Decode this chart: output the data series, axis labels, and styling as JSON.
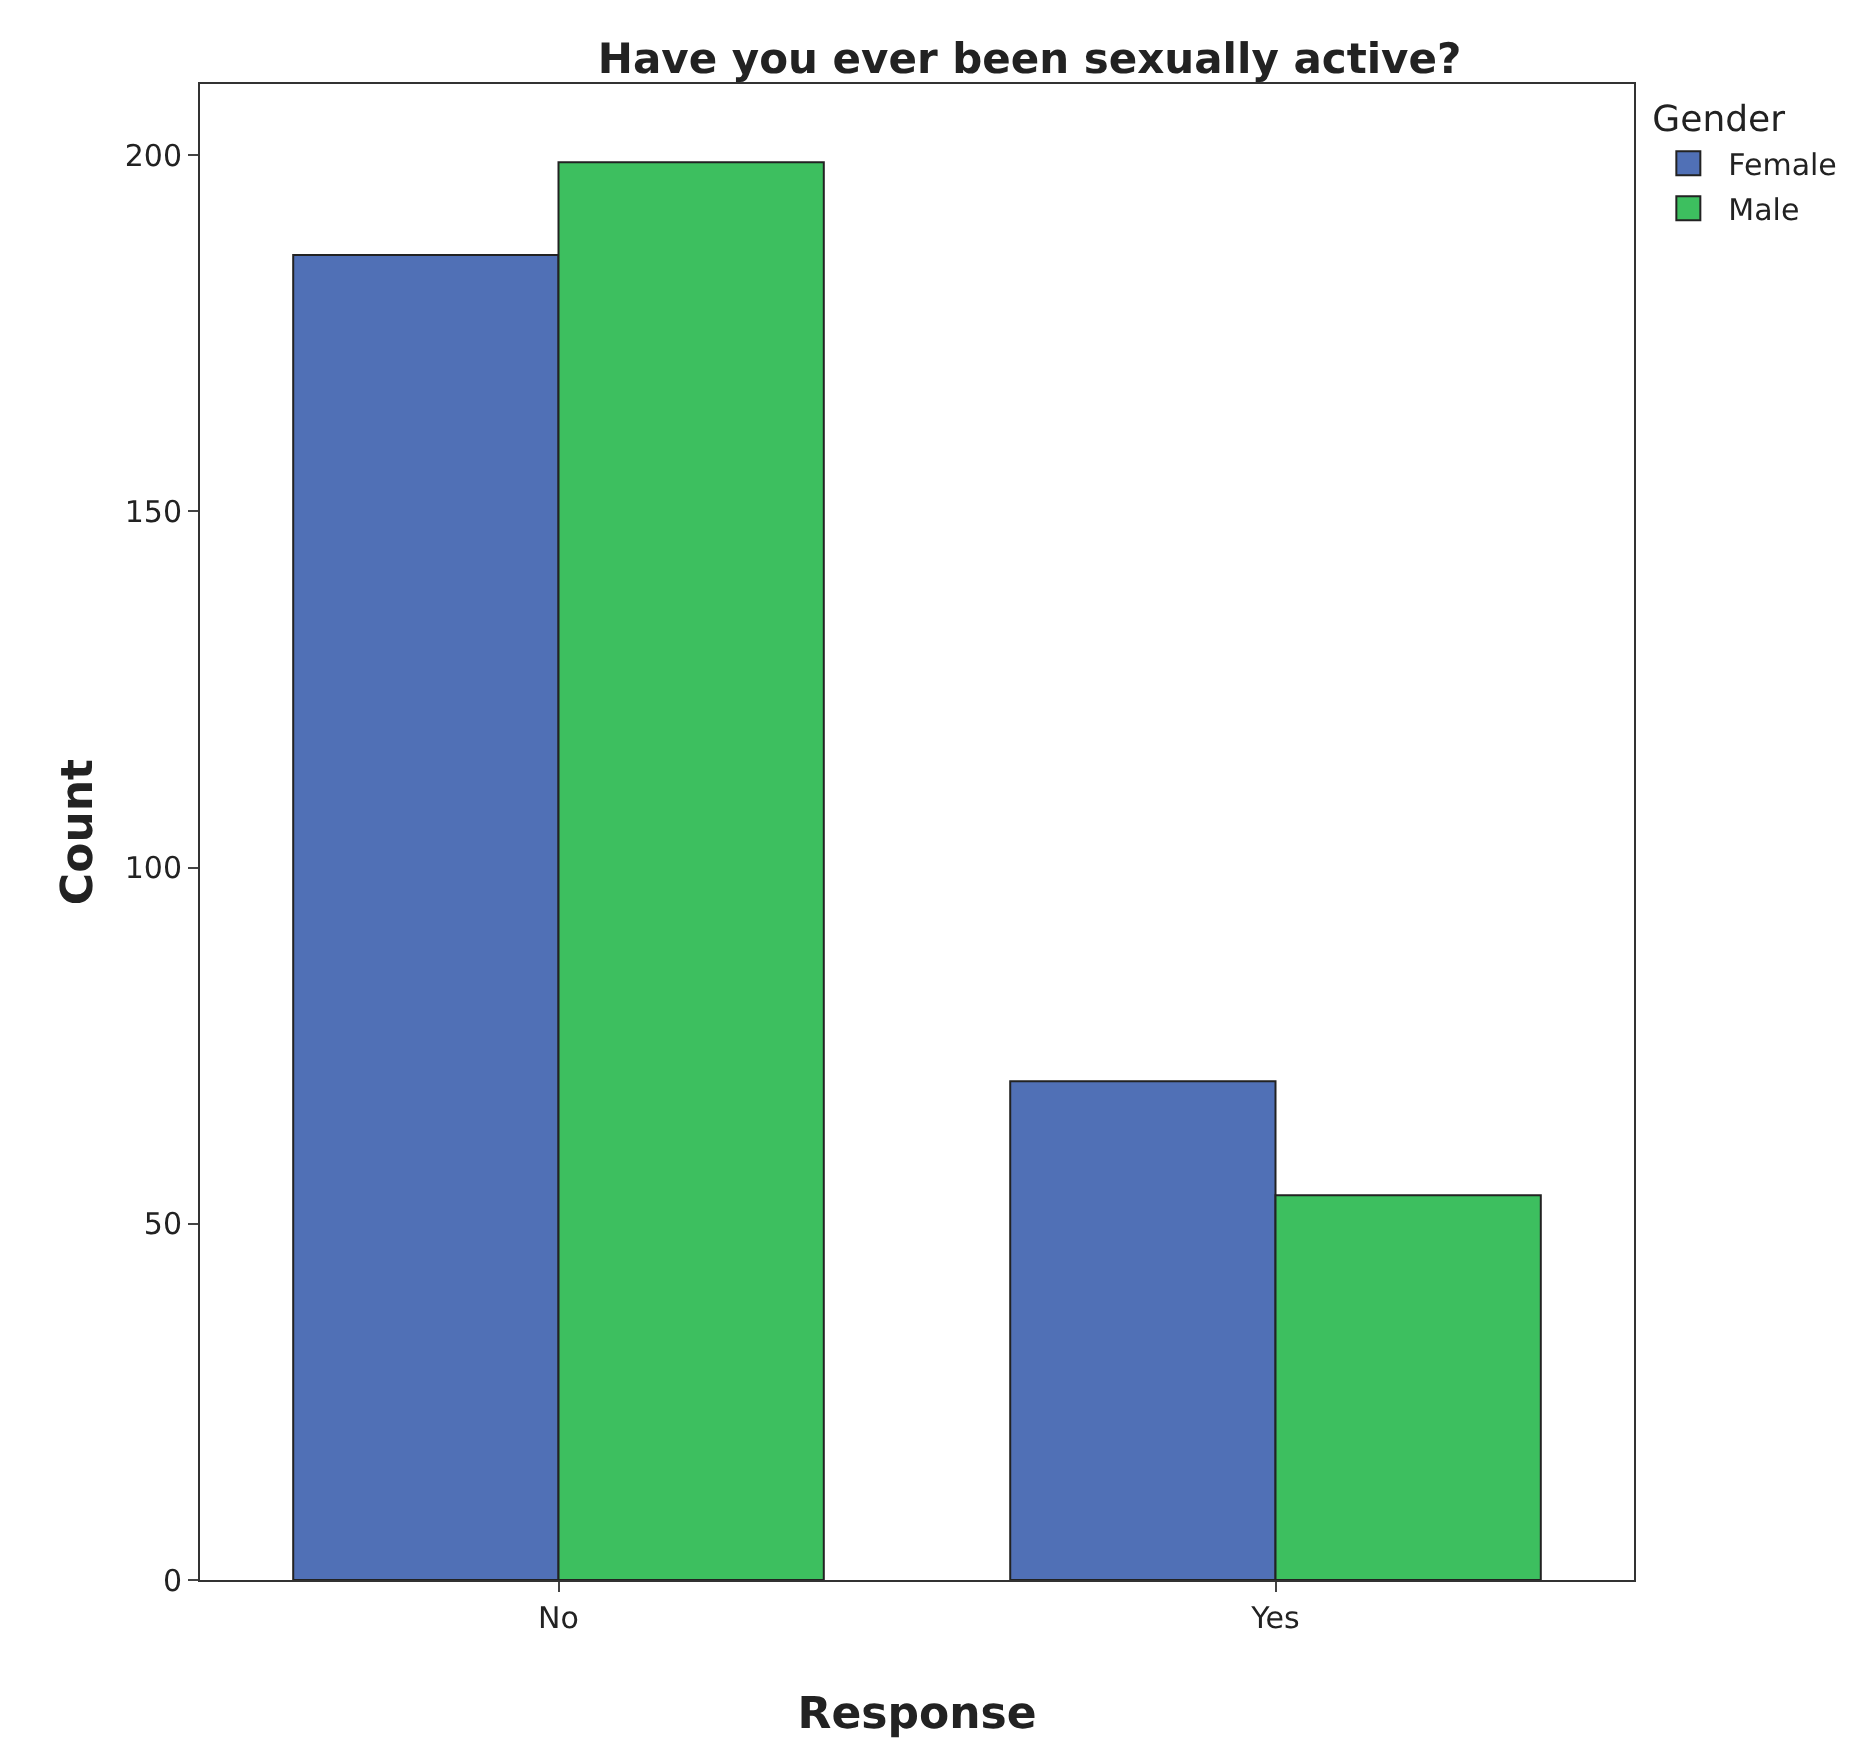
{
  "chart_data": {
    "type": "bar",
    "title": "Have you ever been sexually active?",
    "xlabel": "Response",
    "ylabel": "Count",
    "legend_title": "Gender",
    "categories": [
      "No",
      "Yes"
    ],
    "series": [
      {
        "name": "Female",
        "color": "#5070b6",
        "values": [
          186,
          70
        ]
      },
      {
        "name": "Male",
        "color": "#3dbf5f",
        "values": [
          199,
          54
        ]
      }
    ],
    "ylim": [
      0,
      210
    ],
    "yticks": [
      0,
      50,
      100,
      150,
      200
    ],
    "grid": false,
    "legend": "top right"
  }
}
